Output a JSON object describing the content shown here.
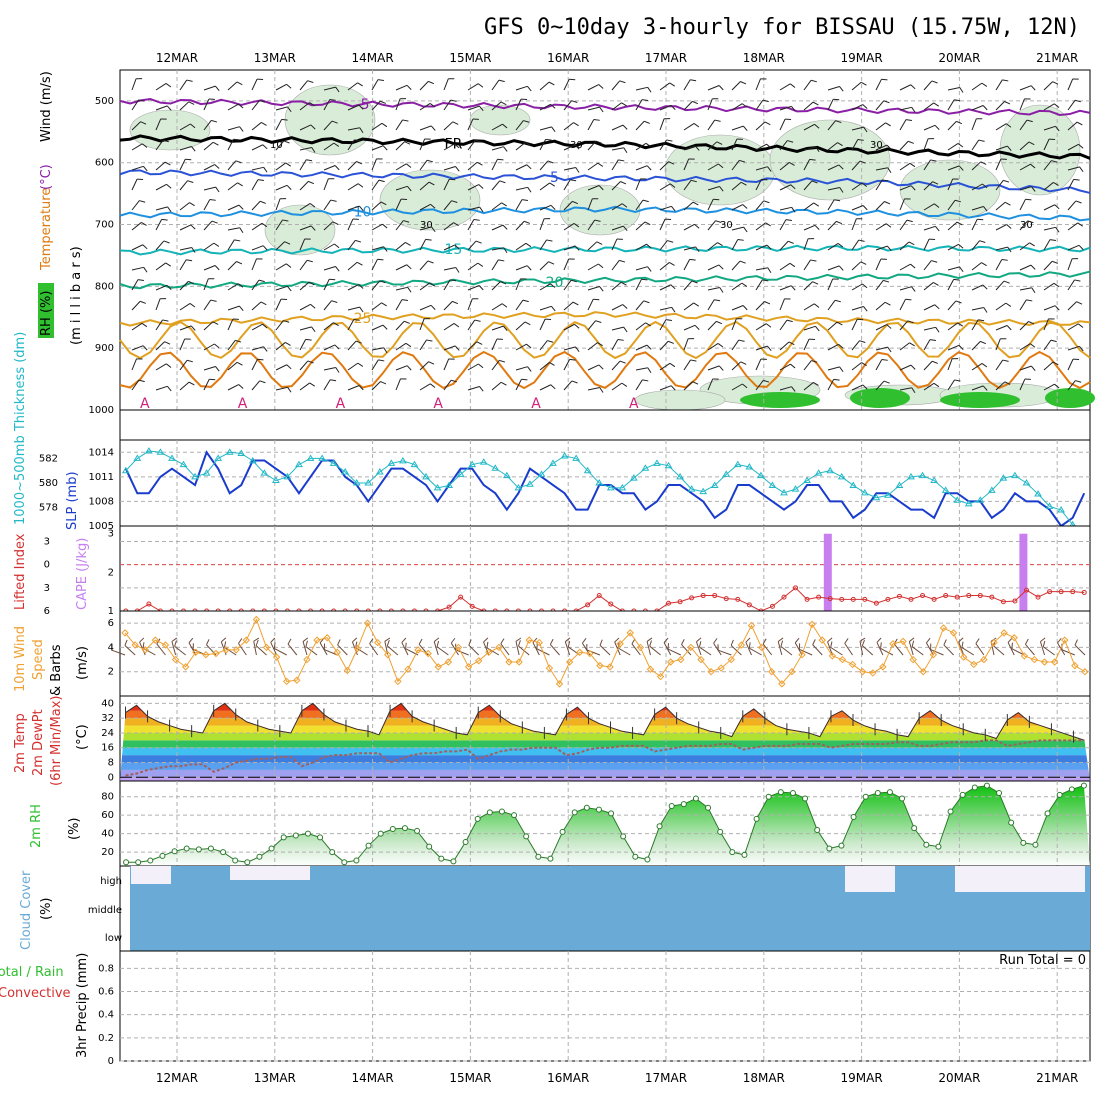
{
  "title": "GFS 0~10day 3-hourly for BISSAU (15.75W, 12N)",
  "dates": [
    "12MAR",
    "13MAR",
    "14MAR",
    "15MAR",
    "16MAR",
    "17MAR",
    "18MAR",
    "19MAR",
    "20MAR",
    "21MAR"
  ],
  "colors": {
    "rh_green": "#2fbf2f",
    "freezing": "#000000",
    "temp_purple": "#8a1fa6",
    "temp_blue": "#2a52d6",
    "temp_lightblue": "#1e90e0",
    "temp_teal": "#14b3b8",
    "temp_green": "#12a882",
    "temp_orange": "#e0a020",
    "temp_darkorange": "#e07a10",
    "slp": "#1a3ccc",
    "thickness": "#22b8c8",
    "cape": "#c77ff0",
    "lifted": "#d43030",
    "wind10m": "#f0a030",
    "cloud": "#6aaad6",
    "rh2m": "#2fbf2f"
  },
  "chart_data": [
    {
      "panel": "upper-air",
      "type": "contour",
      "title": "Temperature (°C) / Wind (m/s) / RH (%)",
      "ylabel": "millibars",
      "yticks": [
        500,
        600,
        700,
        800,
        900,
        1000
      ],
      "ylim": [
        1000,
        450
      ],
      "label_temperature": "Temperature",
      "label_temp_unit": "(°C)",
      "label_wind": "Wind (m/s)",
      "label_rh": "RH (%)",
      "label_millibars": "(m i l l i b a r s)",
      "freezing_label": "FR",
      "isotherms": [
        {
          "temp": -5,
          "label": "-5",
          "levels_mb": [
            500,
            505,
            510,
            515,
            520
          ]
        },
        {
          "temp": 0,
          "label": "FR",
          "levels_mb": [
            560,
            565,
            570,
            580,
            590
          ]
        },
        {
          "temp": 5,
          "label": "5",
          "levels_mb": [
            615,
            620,
            625,
            630,
            645
          ]
        },
        {
          "temp": 10,
          "label": "10",
          "levels_mb": [
            685,
            680,
            675,
            680,
            690
          ]
        },
        {
          "temp": 15,
          "label": "15",
          "levels_mb": [
            745,
            742,
            740,
            738,
            740
          ]
        },
        {
          "temp": 20,
          "label": "20",
          "levels_mb": [
            800,
            795,
            790,
            785,
            780
          ]
        },
        {
          "temp": 25,
          "label": "25",
          "levels_mb": [
            860,
            850,
            845,
            855,
            860
          ]
        }
      ],
      "rh_contour_labels": [
        "10",
        "30",
        "30",
        "30",
        "30",
        "30"
      ],
      "anticyclone_marks": [
        "A",
        "A",
        "A",
        "A",
        "A",
        "A"
      ]
    },
    {
      "panel": "slp-thickness",
      "type": "line",
      "x_unit": "3h step",
      "y_left_label": "1000~500mb Thickness (dm)",
      "y_right_label": "SLP (mb)",
      "thickness_ticks": [
        578,
        580,
        582
      ],
      "slp_ticks": [
        1005,
        1008,
        1011,
        1014
      ],
      "series": [
        {
          "name": "SLP (mb)",
          "axis": "slp",
          "values": [
            1012,
            1009,
            1009,
            1011,
            1012,
            1011,
            1010,
            1014,
            1012,
            1009,
            1010,
            1013,
            1013,
            1012,
            1011,
            1009,
            1011,
            1013,
            1013,
            1011,
            1010,
            1008,
            1010,
            1012,
            1012,
            1011,
            1010,
            1008,
            1010,
            1012,
            1012,
            1010,
            1009,
            1007,
            1009,
            1012,
            1011,
            1010,
            1009,
            1007,
            1007,
            1010,
            1010,
            1009,
            1009,
            1007,
            1008,
            1010,
            1010,
            1009,
            1008,
            1006,
            1007,
            1010,
            1010,
            1009,
            1008,
            1007,
            1008,
            1010,
            1010,
            1008,
            1008,
            1006,
            1007,
            1009,
            1009,
            1008,
            1007,
            1007,
            1006,
            1009,
            1009,
            1008,
            1008,
            1006,
            1007,
            1009,
            1008,
            1008,
            1007,
            1005,
            1006,
            1009
          ]
        },
        {
          "name": "1000-500mb Thickness (dm)",
          "axis": "thickness",
          "values": [
            581,
            582,
            582.6,
            582.5,
            582,
            581.5,
            580.5,
            580.8,
            582,
            582.5,
            582.4,
            581.8,
            580.8,
            580.2,
            580.5,
            581.5,
            582,
            582,
            581.6,
            580.9,
            580,
            580,
            580.9,
            581.6,
            581.8,
            581.5,
            580.5,
            579.6,
            579.8,
            580.7,
            581.5,
            581.7,
            581.2,
            580.6,
            579.6,
            579.9,
            580.7,
            581.6,
            582.2,
            582,
            581,
            580,
            579.6,
            579.6,
            580.4,
            581.2,
            581.6,
            581.4,
            580.5,
            579.5,
            579.3,
            579.8,
            580.7,
            581.5,
            581.3,
            580.6,
            579.8,
            579.2,
            579.5,
            580.2,
            580.8,
            581,
            580.5,
            579.8,
            579.2,
            578.8,
            579,
            579.8,
            580.5,
            580.6,
            580.2,
            579.4,
            578.6,
            578.3,
            578.6,
            579.4,
            580.4,
            580.6,
            580,
            579.1,
            578.1,
            577.8,
            576.6,
            576
          ]
        }
      ]
    },
    {
      "panel": "cape-li",
      "type": "bar",
      "y_left_label": "Lifted Index",
      "y_right_label": "CAPE (J/kg)",
      "li_ticks": [
        -3,
        0,
        3,
        6
      ],
      "cape_ticks": [
        1,
        2,
        3
      ],
      "cape_bars": [
        {
          "day": "18MAR",
          "value": 3
        },
        {
          "day": "20MAR",
          "value": 3
        }
      ],
      "series": [
        {
          "name": "Lifted Index",
          "values": [
            6,
            6,
            5.1,
            6,
            6,
            6,
            6,
            6,
            6,
            6,
            6,
            6,
            6,
            6,
            6,
            6,
            6,
            6,
            6,
            6,
            6,
            6,
            6,
            6,
            6,
            6,
            6,
            6,
            5.5,
            4.2,
            5.4,
            6,
            6,
            6,
            6,
            6,
            6,
            6,
            6,
            6,
            5.2,
            4,
            5.1,
            6,
            6,
            6,
            6,
            5,
            4.8,
            4.3,
            4,
            4,
            4.4,
            4.5,
            5.2,
            6,
            5.4,
            4.2,
            3,
            4.5,
            4.2,
            4.4,
            4.5,
            4.5,
            4.5,
            5,
            4.5,
            4.1,
            4.5,
            4,
            4.5,
            4,
            4.2,
            4,
            4,
            4.2,
            4.8,
            4.7,
            3.3,
            4.2,
            3.5,
            3.5,
            3.5,
            3.6
          ]
        }
      ]
    },
    {
      "panel": "wind10m",
      "type": "line",
      "ylabel": "10m Wind Speed & Barbs (m/s)",
      "label_10m_wind": "10m Wind",
      "label_speed": "Speed",
      "label_barbs_unit": "& Barbs",
      "label_ms": "(m/s)",
      "yticks": [
        2,
        4,
        6
      ],
      "series": [
        {
          "name": "10m Wind Speed (m/s)",
          "values": [
            5.2,
            4.2,
            3.8,
            4.6,
            4.2,
            3.0,
            2.4,
            3.6,
            3.4,
            3.5,
            3.8,
            3.8,
            4.6,
            6.3,
            4.0,
            3.2,
            1.2,
            1.3,
            3.0,
            4.6,
            4.8,
            3.6,
            2.1,
            3.9,
            6.0,
            4.4,
            3.4,
            1.2,
            2.2,
            3.8,
            3.5,
            2.4,
            2.8,
            4.0,
            2.4,
            2.9,
            3.6,
            4.0,
            2.8,
            2.8,
            4.6,
            4.4,
            2.3,
            1.0,
            2.8,
            3.6,
            3.5,
            2.5,
            2.4,
            4.3,
            5.2,
            4.0,
            2.2,
            1.6,
            2.8,
            3.0,
            4.0,
            3.0,
            2.0,
            2.3,
            3.0,
            4.2,
            5.8,
            4.0,
            2.0,
            1.0,
            2.0,
            3.4,
            5.9,
            4.6,
            3.3,
            3.0,
            2.6,
            2.0,
            1.9,
            2.4,
            4.3,
            4.5,
            3.0,
            2.0,
            3.4,
            5.6,
            5.2,
            3.2,
            2.6,
            3.0,
            4.4,
            5.2,
            4.8,
            3.3,
            3.0,
            2.8,
            2.8,
            4.6,
            2.5,
            2.0
          ]
        }
      ]
    },
    {
      "panel": "temp2m",
      "type": "area",
      "ylabel": "2m Temp / 2m DewPt (6hr Min/Max) (°C)",
      "label_temp": "2m Temp",
      "label_dewpt": "2m DewPt",
      "label_minmax": "(6hr Min/Max)",
      "label_unit": "(°C)",
      "yticks": [
        0,
        8,
        16,
        24,
        32,
        40
      ],
      "series": [
        {
          "name": "2m Temp (°C)",
          "values": [
            35,
            39,
            33,
            30,
            28,
            26,
            25,
            24,
            36,
            40,
            34,
            30,
            28,
            26,
            25,
            24,
            36,
            40,
            34,
            30,
            28,
            26,
            25,
            23,
            36,
            40,
            33,
            30,
            28,
            26,
            24,
            23,
            35,
            39,
            33,
            29,
            27,
            25,
            24,
            23,
            34,
            38,
            32,
            29,
            27,
            25,
            24,
            23,
            34,
            38,
            32,
            29,
            27,
            25,
            24,
            22,
            33,
            37,
            32,
            28,
            26,
            25,
            24,
            22,
            33,
            36,
            31,
            28,
            26,
            25,
            23,
            22,
            32,
            36,
            31,
            28,
            26,
            24,
            23,
            21,
            31,
            35,
            30,
            28,
            26,
            24,
            22,
            20
          ]
        },
        {
          "name": "2m DewPt (°C)",
          "values": [
            1,
            2,
            4,
            5,
            6,
            6,
            7,
            7,
            3,
            5,
            8,
            9,
            10,
            10,
            11,
            11,
            6,
            8,
            11,
            12,
            12,
            13,
            13,
            13,
            8,
            10,
            12,
            13,
            13,
            14,
            14,
            15,
            10,
            12,
            14,
            15,
            15,
            16,
            16,
            16,
            12,
            13,
            15,
            16,
            16,
            17,
            17,
            17,
            14,
            15,
            16,
            17,
            17,
            17,
            18,
            18,
            15,
            16,
            17,
            17,
            17,
            18,
            18,
            18,
            16,
            17,
            18,
            18,
            18,
            18,
            19,
            19,
            17,
            17,
            18,
            19,
            19,
            19,
            20,
            20,
            17,
            18,
            19,
            20,
            20,
            20,
            20,
            20
          ]
        }
      ]
    },
    {
      "panel": "rh2m",
      "type": "area",
      "ylabel": "2m RH (%)",
      "label_rh": "2m RH",
      "label_unit": "(%)",
      "yticks": [
        20,
        40,
        60,
        80
      ],
      "series": [
        {
          "name": "2m RH (%)",
          "values": [
            9,
            9,
            11,
            16,
            21,
            24,
            23,
            24,
            20,
            11,
            9,
            15,
            24,
            36,
            38,
            40,
            36,
            20,
            9,
            11,
            27,
            40,
            45,
            46,
            43,
            26,
            13,
            10,
            31,
            56,
            63,
            64,
            60,
            37,
            15,
            13,
            42,
            63,
            68,
            66,
            62,
            37,
            15,
            12,
            48,
            70,
            72,
            78,
            68,
            42,
            20,
            17,
            56,
            80,
            85,
            84,
            78,
            44,
            24,
            27,
            58,
            80,
            84,
            85,
            78,
            46,
            28,
            26,
            64,
            82,
            90,
            92,
            84,
            52,
            30,
            28,
            62,
            82,
            88,
            92
          ]
        }
      ]
    },
    {
      "panel": "cloud",
      "type": "bar",
      "ylabel": "Cloud Cover (%)",
      "label_cloud": "Cloud Cover",
      "label_unit": "(%)",
      "levels": [
        "high",
        "middle",
        "low"
      ],
      "high_clear": [
        {
          "day": "12MAR",
          "value": 100
        },
        {
          "day": "19MAR",
          "value": 100
        },
        {
          "day": "20MAR",
          "value": 100
        },
        {
          "day": "21MAR",
          "value": 100
        }
      ]
    },
    {
      "panel": "precip",
      "type": "bar",
      "ylabel": "3hr Precip (mm)",
      "label_total_rain": "Total / Rain",
      "label_convective": "Convective",
      "label_precip": "3hr Precip (mm)",
      "yticks": [
        0,
        0.2,
        0.4,
        0.6,
        0.8
      ],
      "run_total": "Run Total = 0",
      "values": []
    }
  ]
}
